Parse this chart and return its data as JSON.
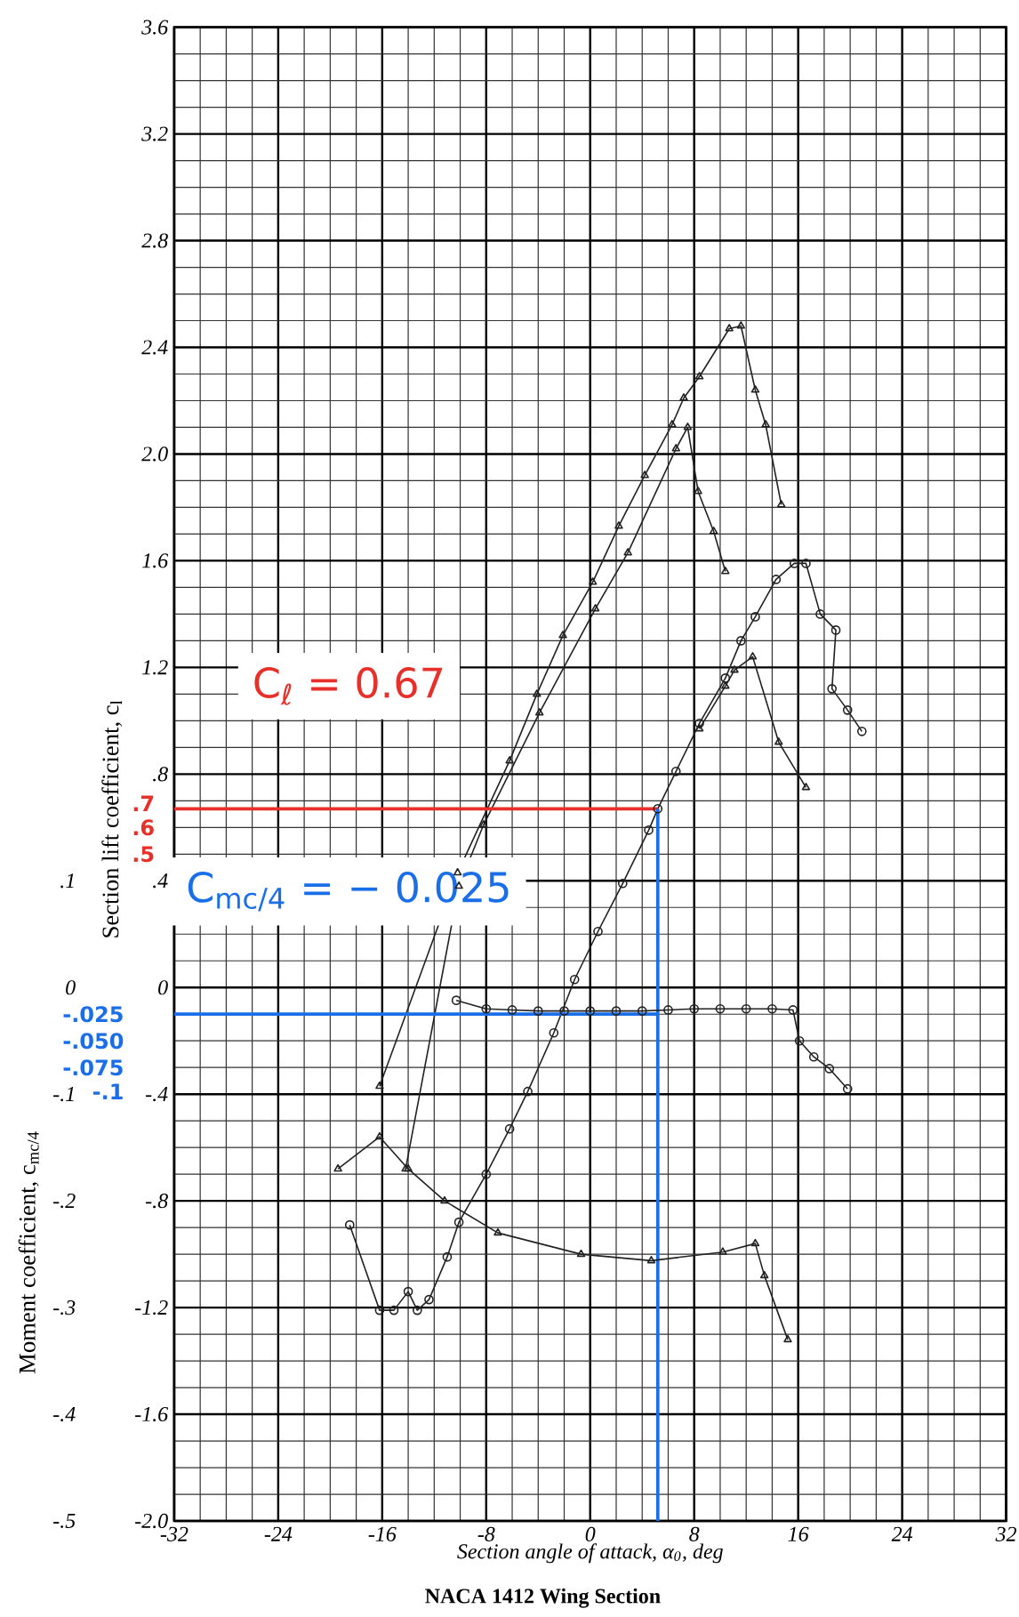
{
  "chart_data": {
    "type": "line",
    "title": "NACA 1412 Wing Section",
    "xlabel": "Section angle of attack, α$_{0}$, deg",
    "ylabel": "Section lift coefficient, c$_{l}$",
    "y2label": "Moment coefficient, c$_{mc/4}$",
    "xlim": [
      -32,
      32
    ],
    "xticks": [
      -32,
      -24,
      -16,
      -8,
      0,
      8,
      16,
      24,
      32
    ],
    "ylim": [
      -2.0,
      3.6
    ],
    "yticks": [
      {
        "value": -2.0,
        "label": "-2.0"
      },
      -1.6,
      -1.2,
      {
        "value": -0.8,
        "label": "-.8"
      },
      {
        "value": -0.4,
        "label": "-.4"
      },
      0,
      {
        "value": 0.4,
        "label": ".4"
      },
      {
        "value": 0.8,
        "label": ".8"
      },
      1.2,
      1.6,
      {
        "value": 2.0,
        "label": "2.0"
      },
      2.4,
      2.8,
      3.2,
      3.6
    ],
    "y2lim": [
      -0.5,
      0.9
    ],
    "y2ticks": [
      {
        "value": -0.5,
        "label": "-.5"
      },
      {
        "value": -0.4,
        "label": "-.4"
      },
      {
        "value": -0.3,
        "label": "-.3"
      },
      {
        "value": -0.2,
        "label": "-.2"
      },
      {
        "value": -0.1,
        "label": "-.1"
      },
      0,
      {
        "value": 0.1,
        "label": ".1"
      }
    ],
    "grid": true,
    "series": [
      {
        "color": "#222222",
        "marker": "triangle",
        "x": [
          -16.2,
          -10.2,
          -6.2,
          -4.1,
          -2.1,
          0.2,
          2.2,
          4.2,
          6.3,
          7.2,
          8.4,
          10.7,
          11.6,
          12.7,
          13.5,
          14.7
        ],
        "values": [
          -0.37,
          0.43,
          0.85,
          1.1,
          1.32,
          1.52,
          1.73,
          1.92,
          2.11,
          2.21,
          2.29,
          2.47,
          2.48,
          2.24,
          2.11,
          1.81
        ]
      },
      {
        "color": "#222222",
        "marker": "triangle",
        "x": [
          -14.2,
          -10.1,
          -8.2,
          -3.9,
          0.4,
          2.9,
          6.6,
          7.5,
          8.3,
          9.5,
          10.4
        ],
        "values": [
          -0.68,
          0.38,
          0.61,
          1.03,
          1.42,
          1.63,
          2.02,
          2.1,
          1.86,
          1.71,
          1.56
        ]
      },
      {
        "color": "#222222",
        "marker": "circle",
        "x": [
          -18.5,
          -16.2,
          -15.1,
          -14.0,
          -13.3,
          -12.4,
          -11.0,
          -10.1,
          -8.0,
          -6.2,
          -4.8,
          -2.8,
          -1.2,
          0.6,
          2.5,
          4.5,
          5.2,
          6.6,
          8.4,
          10.4,
          11.6,
          12.7,
          14.3,
          15.7,
          16.6,
          17.7,
          18.9,
          18.6,
          19.8,
          20.9
        ],
        "values": [
          -0.89,
          -1.21,
          -1.21,
          -1.14,
          -1.21,
          -1.17,
          -1.01,
          -0.88,
          -0.7,
          -0.53,
          -0.39,
          -0.17,
          0.03,
          0.21,
          0.39,
          0.59,
          0.67,
          0.81,
          0.99,
          1.16,
          1.3,
          1.39,
          1.53,
          1.59,
          1.59,
          1.4,
          1.34,
          1.12,
          1.04,
          0.96
        ]
      },
      {
        "color": "#222222",
        "marker": "triangle",
        "x": [
          8.4,
          10.4,
          11.1,
          12.5,
          14.5,
          16.6
        ],
        "values": [
          0.97,
          1.13,
          1.19,
          1.24,
          0.92,
          0.75
        ]
      },
      {
        "color": "#222222",
        "marker": "circle",
        "axis": "y2",
        "x": [
          -10.3,
          -8.0,
          -6.0,
          -4.0,
          -2.0,
          0.0,
          2.0,
          4.0,
          6.0,
          8.0,
          10.0,
          12.0,
          14.0,
          15.6,
          16.1,
          17.2,
          18.4,
          19.8
        ],
        "values": [
          -0.012,
          -0.02,
          -0.021,
          -0.022,
          -0.022,
          -0.022,
          -0.022,
          -0.022,
          -0.021,
          -0.02,
          -0.02,
          -0.02,
          -0.02,
          -0.021,
          -0.05,
          -0.065,
          -0.076,
          -0.095
        ]
      },
      {
        "color": "#222222",
        "marker": "triangle",
        "axis": "y2",
        "x": [
          -19.4,
          -16.2,
          -14.0,
          -11.2,
          -7.1,
          -0.7,
          4.7,
          10.2,
          12.7,
          13.4,
          15.2
        ],
        "values": [
          -0.17,
          -0.14,
          -0.17,
          -0.2,
          -0.23,
          -0.25,
          -0.256,
          -0.248,
          -0.24,
          -0.27,
          -0.33
        ]
      }
    ],
    "ref_lines": [
      {
        "axis": "y",
        "value": 0.67,
        "label": "C$_{ℓ}$ = 0.67",
        "color": "#e8302a"
      },
      {
        "axis": "y2",
        "value": -0.025,
        "label": "C$_{mc/4}$ = − 0.025",
        "color": "#1a6fe8"
      },
      {
        "axis": "x",
        "value": 5.2,
        "color": "#1a6fe8"
      }
    ],
    "annotations": [
      ".7",
      ".6",
      ".5",
      "-.025",
      "-.050",
      "-.075",
      "-.1"
    ]
  }
}
